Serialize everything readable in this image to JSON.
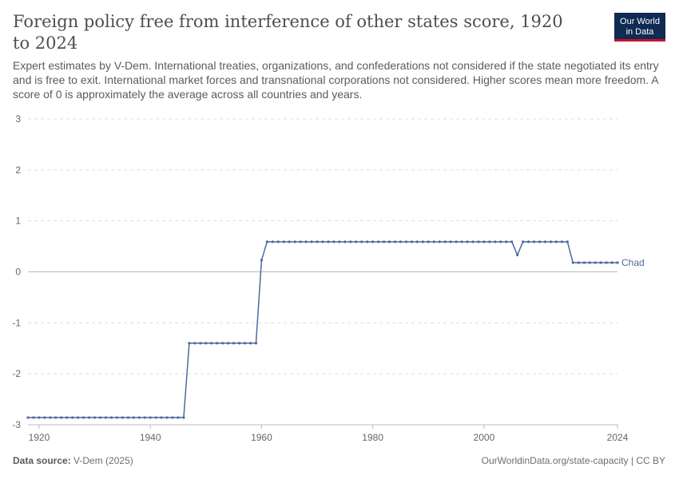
{
  "header": {
    "title": "Foreign policy free from interference of other states score, 1920 to 2024",
    "subtitle": "Expert estimates by V-Dem. International treaties, organizations, and confederations not considered if the state negotiated its entry and is free to exit. International market forces and transnational corporations not considered. Higher scores mean more freedom. A score of 0 is approximately the average across all countries and years.",
    "logo_line1": "Our World",
    "logo_line2": "in Data"
  },
  "footer": {
    "source_label": "Data source:",
    "source_value": "V-Dem (2025)",
    "url_license": "OurWorldinData.org/state-capacity | CC BY"
  },
  "colors": {
    "series": "#4c6a9c",
    "grid": "#dddddd",
    "zero_line": "#bbbbbb",
    "text": "#666666"
  },
  "chart_data": {
    "type": "line",
    "title": "Foreign policy free from interference of other states score, 1920 to 2024",
    "xlabel": "",
    "ylabel": "",
    "xlim": [
      1918,
      2024
    ],
    "ylim": [
      -3,
      3
    ],
    "x_ticks": [
      1920,
      1940,
      1960,
      1980,
      2000,
      2024
    ],
    "y_ticks": [
      -3,
      -2,
      -1,
      0,
      1,
      2,
      3
    ],
    "grid": "horizontal dashed",
    "legend": "inline label at line end",
    "series": [
      {
        "name": "Chad",
        "segments": [
          {
            "from": 1918,
            "to": 1946,
            "value": -2.86
          },
          {
            "from": 1947,
            "to": 1959,
            "value": -1.4
          },
          {
            "from": 1960,
            "to": 1960,
            "value": 0.23
          },
          {
            "from": 1961,
            "to": 2005,
            "value": 0.59
          },
          {
            "from": 2006,
            "to": 2006,
            "value": 0.33
          },
          {
            "from": 2007,
            "to": 2015,
            "value": 0.59
          },
          {
            "from": 2016,
            "to": 2024,
            "value": 0.18
          }
        ]
      }
    ]
  }
}
